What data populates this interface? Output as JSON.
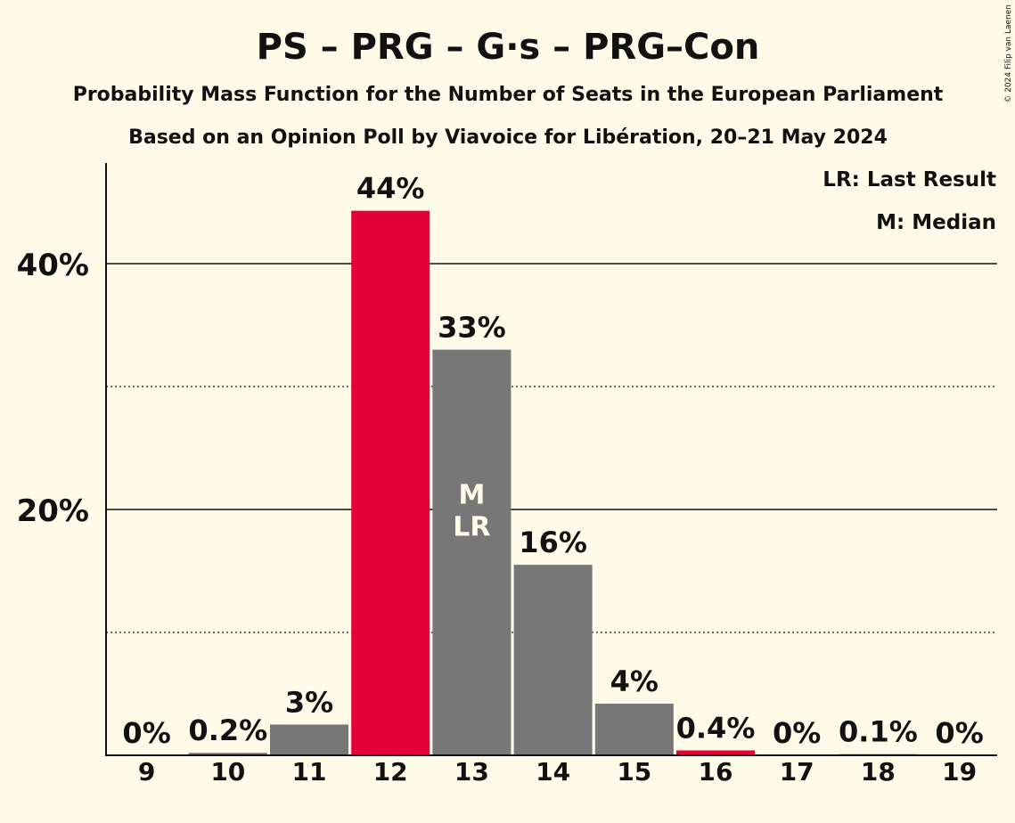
{
  "copyright": "© 2024 Filip van Laenen",
  "chart_data": {
    "type": "bar",
    "title": "PS – PRG – G·s – PRG–Con",
    "subtitle": "Probability Mass Function for the Number of Seats in the European Parliament",
    "subtitle2": "Based on an Opinion Poll by Viavoice for Libération, 20–21 May 2024",
    "categories": [
      "9",
      "10",
      "11",
      "12",
      "13",
      "14",
      "15",
      "16",
      "17",
      "18",
      "19"
    ],
    "values": [
      0,
      0.2,
      2.5,
      44.3,
      33.0,
      15.5,
      4.2,
      0.4,
      0,
      0.1,
      0
    ],
    "value_labels": [
      "0%",
      "0.2%",
      "3%",
      "44%",
      "33%",
      "16%",
      "4%",
      "0.4%",
      "0%",
      "0.1%",
      "0%"
    ],
    "bar_colors": [
      "#777777",
      "#777777",
      "#777777",
      "#e4003b",
      "#777777",
      "#777777",
      "#777777",
      "#e4003b",
      "#777777",
      "#777777",
      "#777777"
    ],
    "ylim": [
      0,
      48
    ],
    "yticks": [
      20,
      40
    ],
    "ytick_labels": [
      "20%",
      "40%"
    ],
    "minor_gridlines": [
      10,
      30
    ],
    "median_seat": "13",
    "last_result_seat": "13",
    "bar_markers": [
      "M",
      "LR"
    ],
    "legend": [
      "LR: Last Result",
      "M: Median"
    ],
    "legend_position": "top-right",
    "colors": {
      "background": "#fefce8",
      "party": "#e4003b",
      "bar": "#777777",
      "text": "#111111"
    }
  }
}
